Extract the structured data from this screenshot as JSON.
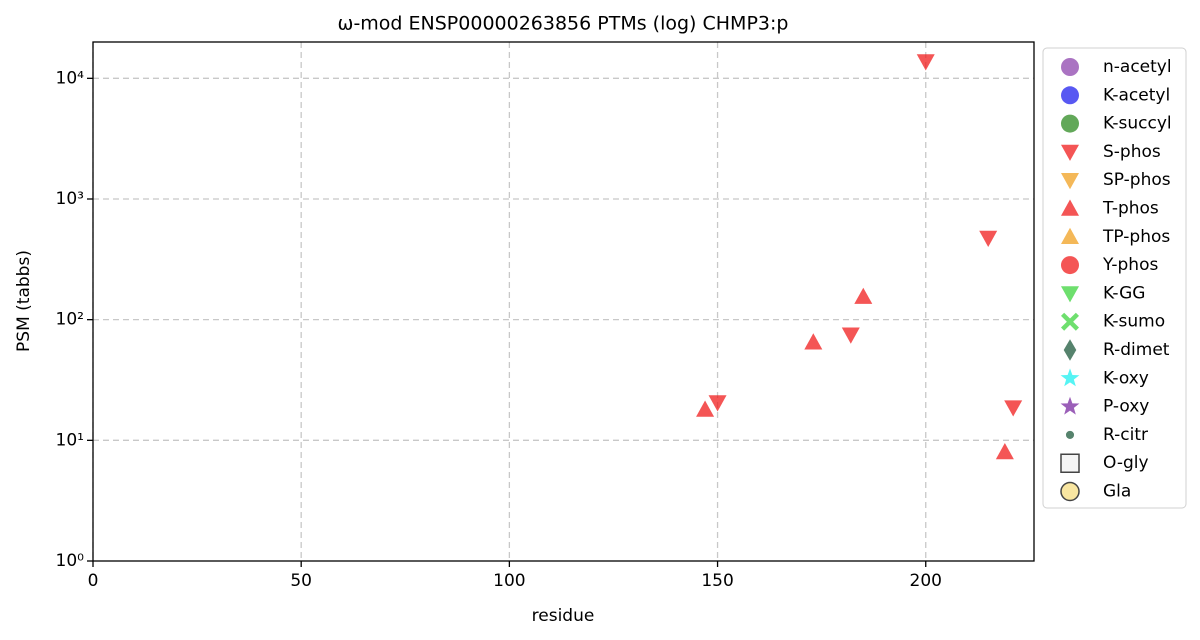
{
  "chart_data": {
    "type": "scatter",
    "title": "ω-mod ENSP00000263856 PTMs (log) CHMP3:p",
    "x_label": "residue",
    "y_label": "PSM (tabbs)",
    "yscale": "log",
    "grid": true,
    "legend_position": "outside-right",
    "xlim": [
      0,
      226
    ],
    "xticks": [
      0,
      50,
      100,
      150,
      200
    ],
    "ylim": [
      1,
      20000
    ],
    "yticks": [
      {
        "value": 1,
        "label": "10⁰"
      },
      {
        "value": 10,
        "label": "10¹"
      },
      {
        "value": 100,
        "label": "10²"
      },
      {
        "value": 1000,
        "label": "10³"
      },
      {
        "value": 10000,
        "label": "10⁴"
      }
    ],
    "series": [
      {
        "name": "n-acetyl",
        "color": "#8e44ad",
        "marker": "o",
        "x": [],
        "values": []
      },
      {
        "name": "K-acetyl",
        "color": "#2020ee",
        "marker": "o",
        "x": [],
        "values": []
      },
      {
        "name": "K-succyl",
        "color": "#2e8b22",
        "marker": "o",
        "x": [],
        "values": []
      },
      {
        "name": "S-phos",
        "color": "#f01c1c",
        "marker": "v",
        "x": [
          200,
          215,
          182,
          150,
          221
        ],
        "values": [
          13800,
          475,
          75,
          20.6,
          18.7
        ]
      },
      {
        "name": "SP-phos",
        "color": "#f0a020",
        "marker": "v",
        "x": [],
        "values": []
      },
      {
        "name": "T-phos",
        "color": "#f01c1c",
        "marker": "^",
        "x": [
          147,
          173,
          185,
          219
        ],
        "values": [
          18,
          65,
          155,
          8
        ]
      },
      {
        "name": "TP-phos",
        "color": "#f0a020",
        "marker": "^",
        "x": [],
        "values": []
      },
      {
        "name": "Y-phos",
        "color": "#f01c1c",
        "marker": "o",
        "x": [],
        "values": []
      },
      {
        "name": "K-GG",
        "color": "#3ed43e",
        "marker": "v",
        "x": [],
        "values": []
      },
      {
        "name": "K-sumo",
        "color": "#3ed43e",
        "marker": "X",
        "x": [],
        "values": []
      },
      {
        "name": "R-dimet",
        "color": "#1e5a3c",
        "marker": "d",
        "x": [],
        "values": []
      },
      {
        "name": "K-oxy",
        "color": "#1ef0f0",
        "marker": "*",
        "x": [],
        "values": []
      },
      {
        "name": "P-oxy",
        "color": "#7a2aa0",
        "marker": "*",
        "x": [],
        "values": []
      },
      {
        "name": "R-citr",
        "color": "#1e5a3c",
        "marker": ".",
        "x": [],
        "values": []
      },
      {
        "name": "O-gly",
        "color": "#f2f2f2",
        "marker": "s",
        "x": [],
        "values": []
      },
      {
        "name": "Gla",
        "color": "#f7e08a",
        "marker": "O",
        "x": [],
        "values": []
      }
    ]
  }
}
